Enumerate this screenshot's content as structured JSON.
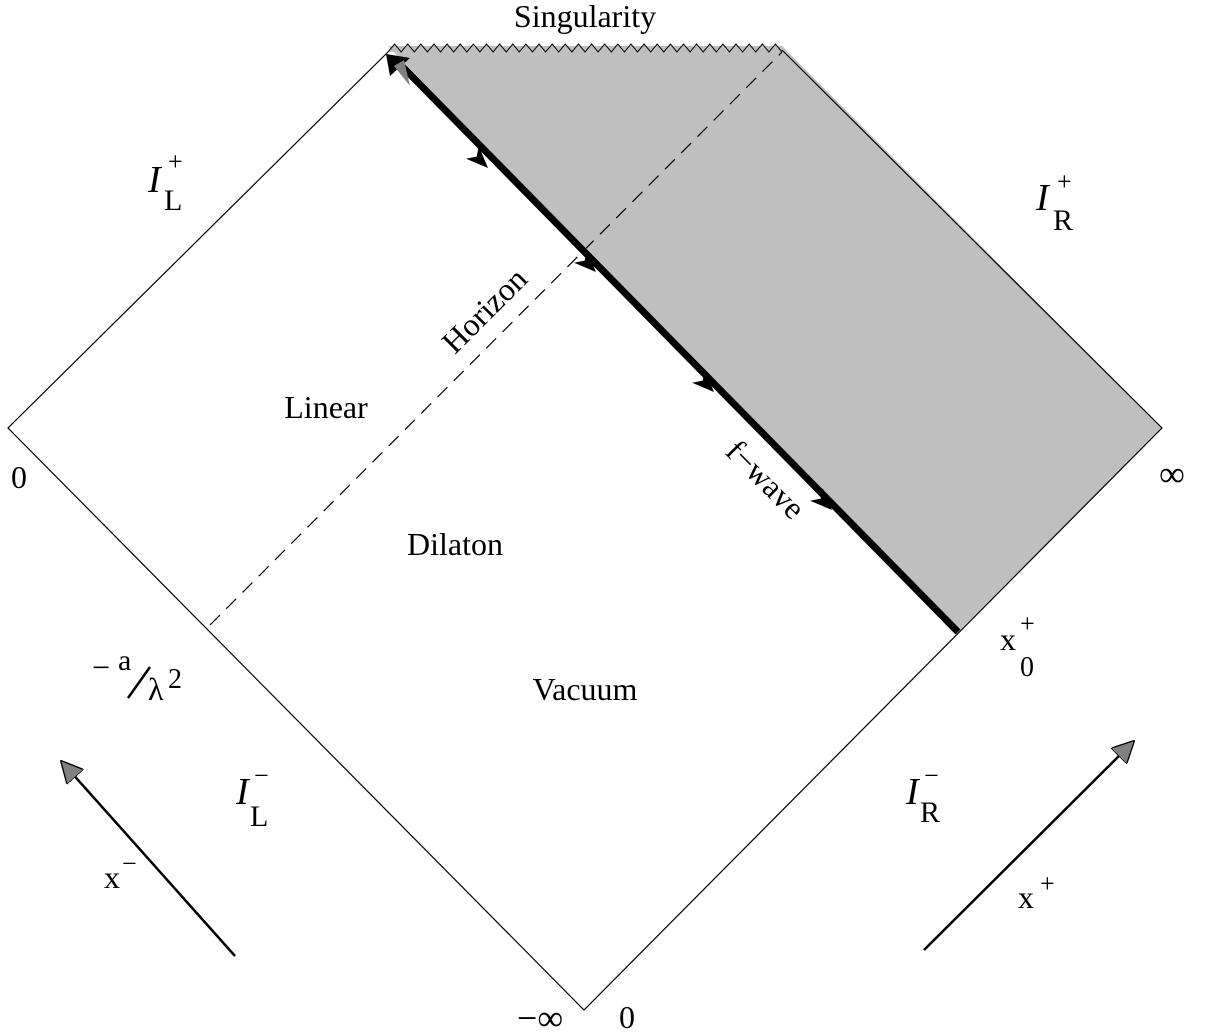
{
  "labels": {
    "singularity": "Singularity",
    "horizon": "Horizon",
    "linear": "Linear",
    "dilaton": "Dilaton",
    "vacuum": "Vacuum",
    "f_wave": "f−wave",
    "zero_left": "0",
    "zero_bottom": "0",
    "infinity_right": "∞",
    "minus_infinity_bottom": "−∞",
    "a_over_lambda_sq": {
      "minus": "−",
      "a": "a",
      "lambda": "λ",
      "power": "2"
    },
    "scri_plus_left": {
      "base": "I",
      "sup": "+",
      "sub": "L"
    },
    "scri_plus_right": {
      "base": "I",
      "sup": "+",
      "sub": "R"
    },
    "scri_minus_left": {
      "base": "I",
      "sup": "−",
      "sub": "L"
    },
    "scri_minus_right": {
      "base": "I",
      "sup": "−",
      "sub": "R"
    },
    "x_minus": {
      "base": "x",
      "sup": "−"
    },
    "x_plus": {
      "base": "x",
      "sup": "+"
    },
    "x0_plus": {
      "base": "x",
      "sup": "+",
      "sub": "0"
    }
  },
  "colors": {
    "shaded_region": "#bfbfbf",
    "line": "#000000",
    "arrowhead_fill": "#808080"
  }
}
